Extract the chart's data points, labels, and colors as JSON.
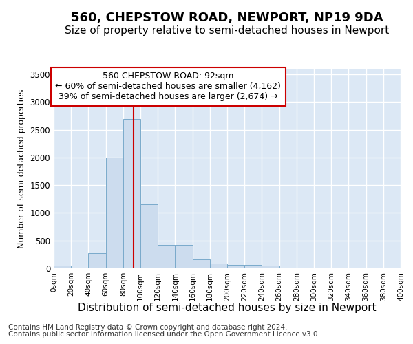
{
  "title1": "560, CHEPSTOW ROAD, NEWPORT, NP19 9DA",
  "title2": "Size of property relative to semi-detached houses in Newport",
  "xlabel": "Distribution of semi-detached houses by size in Newport",
  "ylabel": "Number of semi-detached properties",
  "footnote1": "Contains HM Land Registry data © Crown copyright and database right 2024.",
  "footnote2": "Contains public sector information licensed under the Open Government Licence v3.0.",
  "bin_edges": [
    0,
    20,
    40,
    60,
    80,
    100,
    120,
    140,
    160,
    180,
    200,
    220,
    240,
    260,
    280,
    300,
    320,
    340,
    360,
    380,
    400
  ],
  "bar_heights": [
    50,
    0,
    270,
    2000,
    2700,
    1150,
    420,
    420,
    160,
    90,
    60,
    60,
    55,
    0,
    0,
    0,
    0,
    0,
    0,
    0
  ],
  "bar_color": "#ccdcee",
  "bar_edge_color": "#7aaacb",
  "property_size": 92,
  "red_line_color": "#cc0000",
  "annotation_title": "560 CHEPSTOW ROAD: 92sqm",
  "annotation_line1": "← 60% of semi-detached houses are smaller (4,162)",
  "annotation_line2": "39% of semi-detached houses are larger (2,674) →",
  "annotation_box_color": "#ffffff",
  "annotation_border_color": "#cc0000",
  "ylim": [
    0,
    3600
  ],
  "yticks": [
    0,
    500,
    1000,
    1500,
    2000,
    2500,
    3000,
    3500
  ],
  "tick_labels": [
    "0sqm",
    "20sqm",
    "40sqm",
    "60sqm",
    "80sqm",
    "100sqm",
    "120sqm",
    "140sqm",
    "160sqm",
    "180sqm",
    "200sqm",
    "220sqm",
    "240sqm",
    "260sqm",
    "280sqm",
    "300sqm",
    "320sqm",
    "340sqm",
    "360sqm",
    "380sqm",
    "400sqm"
  ],
  "fig_background_color": "#ffffff",
  "plot_bg_color": "#dce8f5",
  "grid_color": "#ffffff",
  "title1_fontsize": 13,
  "title2_fontsize": 11,
  "xlabel_fontsize": 11,
  "ylabel_fontsize": 9,
  "footnote_fontsize": 7.5,
  "annotation_fontsize": 9
}
